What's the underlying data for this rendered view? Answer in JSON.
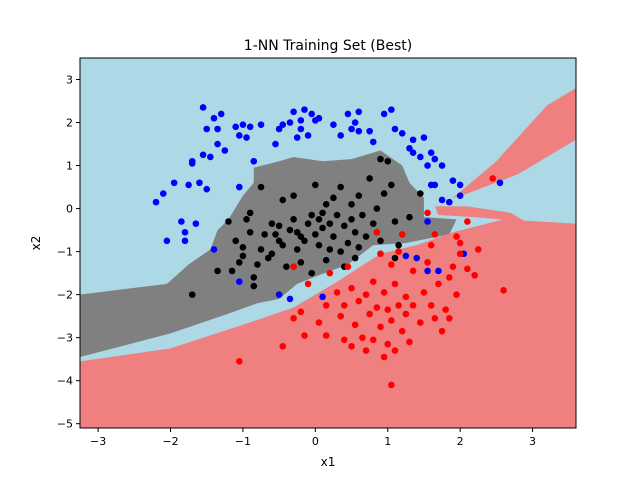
{
  "chart_data": {
    "type": "scatter",
    "title": "1-NN Training Set (Best)",
    "xlabel": "x1",
    "ylabel": "x2",
    "xlim": [
      -3.25,
      3.6
    ],
    "ylim": [
      -5.1,
      3.5
    ],
    "xticks": [
      -3,
      -2,
      -1,
      0,
      1,
      2,
      3
    ],
    "yticks": [
      -5,
      -4,
      -3,
      -2,
      -1,
      0,
      1,
      2,
      3
    ],
    "grid": false,
    "legend": "none",
    "region_colors": {
      "blue": "#add8e6",
      "black": "#808080",
      "red": "#f08080"
    },
    "series": [
      {
        "color": "#0000ff",
        "points": [
          [
            -2.2,
            0.15
          ],
          [
            -2.1,
            0.35
          ],
          [
            -2.05,
            -0.75
          ],
          [
            -1.95,
            0.6
          ],
          [
            -1.85,
            -0.3
          ],
          [
            -1.8,
            -0.55
          ],
          [
            -1.8,
            -0.75
          ],
          [
            -1.75,
            0.55
          ],
          [
            -1.7,
            1.05
          ],
          [
            -1.7,
            1.1
          ],
          [
            -1.65,
            -0.35
          ],
          [
            -1.6,
            0.6
          ],
          [
            -1.55,
            1.25
          ],
          [
            -1.55,
            2.35
          ],
          [
            -1.5,
            0.45
          ],
          [
            -1.5,
            1.85
          ],
          [
            -1.45,
            1.2
          ],
          [
            -1.4,
            2.1
          ],
          [
            -1.4,
            -0.95
          ],
          [
            -1.35,
            1.5
          ],
          [
            -1.35,
            1.85
          ],
          [
            -1.3,
            2.2
          ],
          [
            -1.25,
            1.35
          ],
          [
            -1.1,
            1.9
          ],
          [
            -1.05,
            1.7
          ],
          [
            -1.05,
            0.5
          ],
          [
            -1.0,
            1.95
          ],
          [
            -0.95,
            1.65
          ],
          [
            -0.9,
            1.9
          ],
          [
            -0.85,
            1.1
          ],
          [
            -0.75,
            1.95
          ],
          [
            -0.55,
            1.5
          ],
          [
            -0.5,
            1.85
          ],
          [
            -0.45,
            1.95
          ],
          [
            -0.35,
            2.0
          ],
          [
            -0.3,
            2.25
          ],
          [
            -0.25,
            1.65
          ],
          [
            -0.2,
            2.05
          ],
          [
            -0.2,
            1.85
          ],
          [
            -0.15,
            2.3
          ],
          [
            -0.1,
            1.7
          ],
          [
            -0.05,
            2.2
          ],
          [
            0.0,
            2.05
          ],
          [
            0.05,
            2.1
          ],
          [
            0.25,
            1.95
          ],
          [
            0.35,
            1.7
          ],
          [
            0.45,
            2.2
          ],
          [
            0.5,
            1.85
          ],
          [
            0.55,
            2.0
          ],
          [
            0.6,
            2.25
          ],
          [
            0.6,
            1.8
          ],
          [
            0.75,
            1.8
          ],
          [
            0.8,
            1.55
          ],
          [
            0.95,
            2.2
          ],
          [
            1.05,
            2.3
          ],
          [
            1.1,
            1.85
          ],
          [
            1.2,
            1.75
          ],
          [
            1.3,
            1.4
          ],
          [
            1.35,
            1.3
          ],
          [
            1.35,
            1.6
          ],
          [
            1.45,
            1.2
          ],
          [
            1.5,
            1.65
          ],
          [
            1.55,
            1.0
          ],
          [
            1.6,
            1.3
          ],
          [
            1.6,
            0.55
          ],
          [
            1.65,
            1.15
          ],
          [
            1.65,
            0.55
          ],
          [
            1.75,
            1.0
          ],
          [
            1.75,
            0.2
          ],
          [
            1.85,
            0.15
          ],
          [
            1.9,
            0.65
          ],
          [
            2.0,
            0.55
          ],
          [
            2.0,
            0.3
          ],
          [
            2.05,
            -1.05
          ],
          [
            2.55,
            0.6
          ],
          [
            1.55,
            -0.3
          ],
          [
            1.4,
            -1.15
          ],
          [
            1.55,
            -1.45
          ],
          [
            0.1,
            -2.05
          ],
          [
            -0.35,
            -2.1
          ],
          [
            -1.05,
            -1.7
          ],
          [
            -0.5,
            -2.0
          ],
          [
            1.25,
            -1.1
          ],
          [
            1.7,
            -1.45
          ]
        ]
      },
      {
        "color": "#000000",
        "points": [
          [
            -1.7,
            -2.0
          ],
          [
            -1.35,
            -1.45
          ],
          [
            -1.2,
            -0.3
          ],
          [
            -1.15,
            -1.45
          ],
          [
            -1.1,
            -0.75
          ],
          [
            -1.05,
            -1.25
          ],
          [
            -1.0,
            -1.1
          ],
          [
            -1.0,
            -0.9
          ],
          [
            -0.95,
            -0.25
          ],
          [
            -0.9,
            -0.55
          ],
          [
            -0.9,
            -0.1
          ],
          [
            -0.85,
            -1.6
          ],
          [
            -0.8,
            -1.3
          ],
          [
            -0.75,
            -0.95
          ],
          [
            -0.75,
            0.5
          ],
          [
            -0.7,
            -0.6
          ],
          [
            -0.65,
            -1.15
          ],
          [
            -0.6,
            -1.05
          ],
          [
            -0.6,
            -0.35
          ],
          [
            -0.55,
            -0.6
          ],
          [
            -0.5,
            -0.75
          ],
          [
            -0.5,
            -0.4
          ],
          [
            -0.45,
            -0.85
          ],
          [
            -0.45,
            0.2
          ],
          [
            -0.4,
            -1.35
          ],
          [
            -0.35,
            -0.5
          ],
          [
            -0.3,
            0.3
          ],
          [
            -0.3,
            -0.25
          ],
          [
            -0.25,
            -0.55
          ],
          [
            -0.25,
            -0.95
          ],
          [
            -0.2,
            -0.65
          ],
          [
            -0.2,
            -1.25
          ],
          [
            -0.15,
            -0.75
          ],
          [
            -0.1,
            -0.35
          ],
          [
            -0.05,
            -0.15
          ],
          [
            -0.05,
            -1.5
          ],
          [
            0.0,
            -0.6
          ],
          [
            0.0,
            0.55
          ],
          [
            0.05,
            -0.25
          ],
          [
            0.05,
            -0.85
          ],
          [
            0.1,
            -0.1
          ],
          [
            0.1,
            -0.45
          ],
          [
            0.15,
            0.1
          ],
          [
            0.15,
            -1.2
          ],
          [
            0.2,
            -0.35
          ],
          [
            0.2,
            -0.95
          ],
          [
            0.25,
            0.25
          ],
          [
            0.25,
            -0.65
          ],
          [
            0.3,
            -0.15
          ],
          [
            0.35,
            -1.0
          ],
          [
            0.35,
            0.5
          ],
          [
            0.4,
            -0.4
          ],
          [
            0.4,
            -1.35
          ],
          [
            0.45,
            -0.8
          ],
          [
            0.5,
            0.1
          ],
          [
            0.5,
            -0.25
          ],
          [
            0.55,
            -0.55
          ],
          [
            0.55,
            -1.15
          ],
          [
            0.6,
            0.3
          ],
          [
            0.6,
            -0.9
          ],
          [
            0.65,
            -0.15
          ],
          [
            0.7,
            -0.65
          ],
          [
            0.75,
            0.7
          ],
          [
            0.8,
            -0.35
          ],
          [
            0.85,
            0.0
          ],
          [
            0.9,
            -0.75
          ],
          [
            0.95,
            0.35
          ],
          [
            1.0,
            1.1
          ],
          [
            1.05,
            0.55
          ],
          [
            1.1,
            -0.3
          ],
          [
            1.1,
            -1.15
          ],
          [
            1.15,
            -0.85
          ],
          [
            1.3,
            -0.2
          ],
          [
            1.45,
            0.35
          ],
          [
            0.9,
            1.15
          ],
          [
            -0.85,
            -1.8
          ]
        ]
      },
      {
        "color": "#ff0000",
        "points": [
          [
            -1.05,
            -3.55
          ],
          [
            -0.45,
            -3.2
          ],
          [
            -0.3,
            -2.55
          ],
          [
            -0.3,
            -1.35
          ],
          [
            -0.2,
            -2.4
          ],
          [
            -0.15,
            -2.95
          ],
          [
            -0.1,
            -1.75
          ],
          [
            0.05,
            -2.65
          ],
          [
            0.15,
            -2.95
          ],
          [
            0.15,
            -2.25
          ],
          [
            0.2,
            -1.5
          ],
          [
            0.3,
            -1.95
          ],
          [
            0.35,
            -2.5
          ],
          [
            0.4,
            -2.25
          ],
          [
            0.4,
            -3.05
          ],
          [
            0.45,
            -1.35
          ],
          [
            0.5,
            -1.85
          ],
          [
            0.5,
            -3.2
          ],
          [
            0.55,
            -2.7
          ],
          [
            0.6,
            -2.15
          ],
          [
            0.65,
            -3.0
          ],
          [
            0.7,
            -2.0
          ],
          [
            0.7,
            -3.3
          ],
          [
            0.75,
            -2.45
          ],
          [
            0.8,
            -1.7
          ],
          [
            0.8,
            -3.05
          ],
          [
            0.85,
            -2.3
          ],
          [
            0.85,
            -0.55
          ],
          [
            0.9,
            -2.75
          ],
          [
            0.95,
            -1.95
          ],
          [
            0.95,
            -3.45
          ],
          [
            1.0,
            -2.35
          ],
          [
            1.0,
            -3.15
          ],
          [
            1.05,
            -1.3
          ],
          [
            1.05,
            -2.6
          ],
          [
            1.05,
            -4.1
          ],
          [
            1.1,
            -1.75
          ],
          [
            1.1,
            -3.3
          ],
          [
            1.15,
            -2.25
          ],
          [
            1.15,
            -1.0
          ],
          [
            1.2,
            -2.85
          ],
          [
            1.25,
            -2.05
          ],
          [
            1.25,
            -2.45
          ],
          [
            1.3,
            -3.1
          ],
          [
            1.35,
            -1.45
          ],
          [
            1.35,
            -2.25
          ],
          [
            1.45,
            -2.65
          ],
          [
            1.5,
            -1.95
          ],
          [
            1.55,
            -1.25
          ],
          [
            1.6,
            -2.25
          ],
          [
            1.65,
            -2.55
          ],
          [
            1.7,
            -1.75
          ],
          [
            1.75,
            -2.85
          ],
          [
            1.8,
            -2.35
          ],
          [
            1.85,
            -1.6
          ],
          [
            1.85,
            -2.55
          ],
          [
            1.9,
            -1.35
          ],
          [
            1.95,
            -2.0
          ],
          [
            1.95,
            -0.65
          ],
          [
            2.0,
            -1.05
          ],
          [
            2.0,
            -0.8
          ],
          [
            2.1,
            -1.4
          ],
          [
            2.2,
            -1.55
          ],
          [
            2.25,
            -0.95
          ],
          [
            2.45,
            0.7
          ],
          [
            2.6,
            -1.9
          ],
          [
            1.6,
            -0.85
          ],
          [
            0.9,
            -1.05
          ],
          [
            1.2,
            -0.6
          ],
          [
            1.55,
            -0.1
          ],
          [
            2.1,
            -0.3
          ],
          [
            1.65,
            -0.6
          ]
        ]
      }
    ]
  }
}
